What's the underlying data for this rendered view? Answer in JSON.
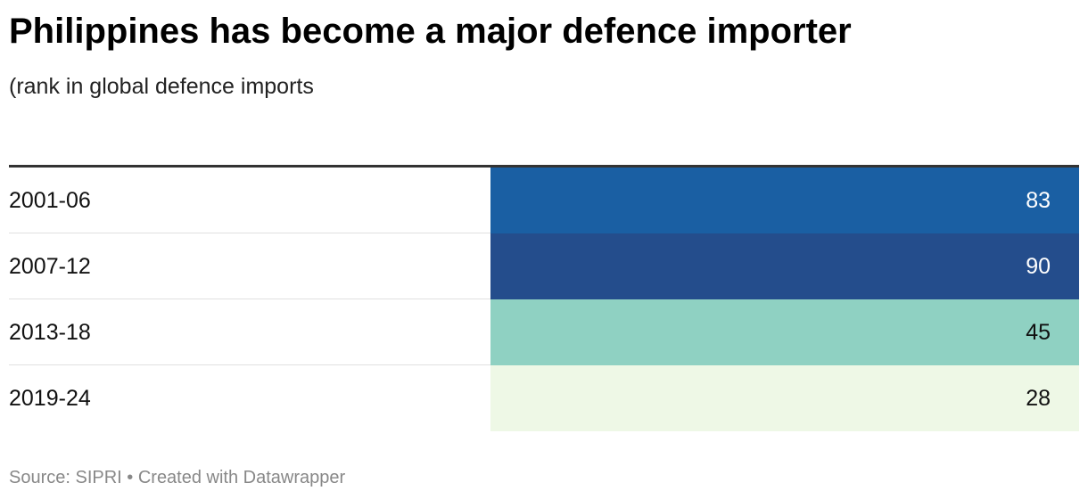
{
  "chart_data": {
    "type": "table",
    "title": "Philippines has become a major defence importer",
    "subtitle": "(rank in global defence imports",
    "categories": [
      "2001-06",
      "2007-12",
      "2013-18",
      "2019-24"
    ],
    "values": [
      83,
      90,
      45,
      28
    ],
    "cell_colors": [
      "#1a5fa3",
      "#244d8c",
      "#8fd1c2",
      "#eef8e6"
    ],
    "value_text_colors": [
      "#ffffff",
      "#ffffff",
      "#111111",
      "#111111"
    ],
    "rows": [
      {
        "period": "2001-06",
        "rank": "83"
      },
      {
        "period": "2007-12",
        "rank": "90"
      },
      {
        "period": "2013-18",
        "rank": "45"
      },
      {
        "period": "2019-24",
        "rank": "28"
      }
    ]
  },
  "footer": {
    "text": "Source: SIPRI • Created with Datawrapper"
  }
}
